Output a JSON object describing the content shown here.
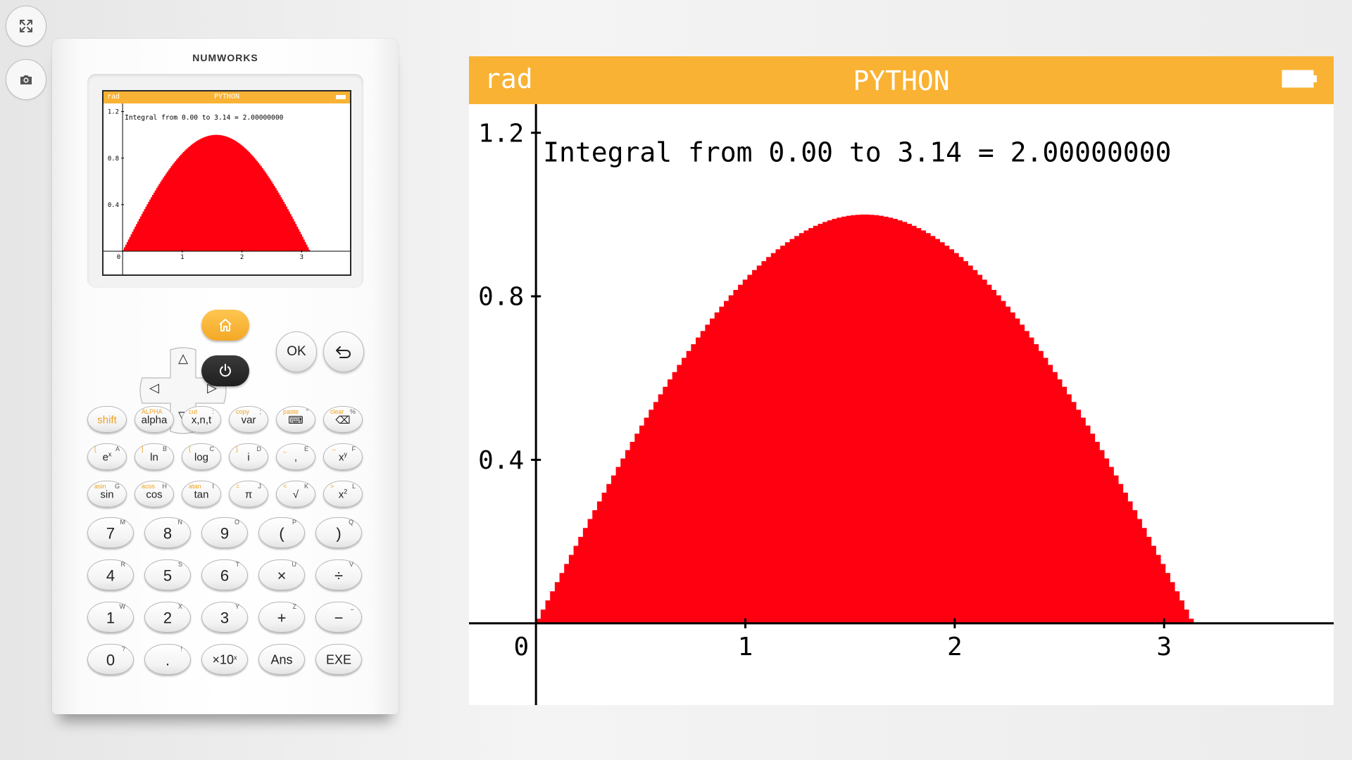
{
  "toolbar": {
    "fullscreen_icon": "fullscreen-icon",
    "screenshot_icon": "camera-icon"
  },
  "calculator": {
    "brand": "NUMWORKS",
    "nav": {
      "up": "△",
      "down": "▽",
      "left": "◁",
      "right": "▷",
      "home_icon": "home-icon",
      "power_icon": "power-icon",
      "ok": "OK",
      "back_icon": "back-arrow-icon"
    },
    "colors": {
      "accent": "#f9b233",
      "plot": "#ff0010",
      "power": "#2b2b2b"
    },
    "func_rows": [
      [
        {
          "main": "shift",
          "yellow": "",
          "alt": ""
        },
        {
          "main": "alpha",
          "yellow": "ALPHA",
          "alt": ""
        },
        {
          "main": "x,n,t",
          "yellow": "cut",
          "alt": ":"
        },
        {
          "main": "var",
          "yellow": "copy",
          "alt": ";"
        },
        {
          "main": "⌨",
          "yellow": "paste",
          "alt": "\""
        },
        {
          "main": "⌫",
          "yellow": "clear",
          "alt": "%"
        }
      ],
      [
        {
          "main": "e",
          "sup": "x",
          "yellow": "[",
          "alt": "A"
        },
        {
          "main": "ln",
          "yellow": "]",
          "alt": "B"
        },
        {
          "main": "log",
          "yellow": "{",
          "alt": "C"
        },
        {
          "main": "i",
          "yellow": "}",
          "alt": "D"
        },
        {
          "main": ",",
          "yellow": "_",
          "alt": "E"
        },
        {
          "main": "x",
          "sup": "y",
          "yellow": "→",
          "alt": "F"
        }
      ],
      [
        {
          "main": "sin",
          "yellow": "asin",
          "alt": "G"
        },
        {
          "main": "cos",
          "yellow": "acos",
          "alt": "H"
        },
        {
          "main": "tan",
          "yellow": "atan",
          "alt": "I"
        },
        {
          "main": "π",
          "yellow": "=",
          "alt": "J"
        },
        {
          "main": "√",
          "yellow": "<",
          "alt": "K"
        },
        {
          "main": "x",
          "sup": "2",
          "yellow": ">",
          "alt": "L"
        }
      ]
    ],
    "num_rows": [
      [
        {
          "main": "7",
          "alt": "M"
        },
        {
          "main": "8",
          "alt": "N"
        },
        {
          "main": "9",
          "alt": "O"
        },
        {
          "main": "(",
          "alt": "P"
        },
        {
          "main": ")",
          "alt": "Q"
        }
      ],
      [
        {
          "main": "4",
          "alt": "R"
        },
        {
          "main": "5",
          "alt": "S"
        },
        {
          "main": "6",
          "alt": "T"
        },
        {
          "main": "×",
          "alt": "U"
        },
        {
          "main": "÷",
          "alt": "V"
        }
      ],
      [
        {
          "main": "1",
          "alt": "W"
        },
        {
          "main": "2",
          "alt": "X"
        },
        {
          "main": "3",
          "alt": "Y"
        },
        {
          "main": "+",
          "alt": "Z"
        },
        {
          "main": "−",
          "alt": "⎵"
        }
      ],
      [
        {
          "main": "0",
          "alt": "?"
        },
        {
          "main": ".",
          "alt": "!"
        },
        {
          "main": "×10",
          "sup": "x",
          "alt": ""
        },
        {
          "main": "Ans",
          "alt": ""
        },
        {
          "main": "EXE",
          "alt": ""
        }
      ]
    ]
  },
  "screen": {
    "angle_mode": "rad",
    "app": "PYTHON",
    "battery_icon": "battery-icon",
    "annotation": "Integral from 0.00 to 3.14 = 2.00000000"
  },
  "chart_data": {
    "type": "area",
    "function": "sin(x)",
    "x_range": [
      0,
      3.1416
    ],
    "samples": 140,
    "xlim": [
      -0.32,
      3.81
    ],
    "ylim": [
      -0.2,
      1.27
    ],
    "x_ticks": [
      0,
      1,
      2,
      3
    ],
    "x_tick_labels": [
      "0",
      "1",
      "2",
      "3"
    ],
    "y_ticks": [
      0.4,
      0.8,
      1.2
    ],
    "y_tick_labels": [
      "0.4",
      "0.8",
      "1.2"
    ],
    "fill_color": "#ff0010",
    "grid": false,
    "annotation": "Integral from 0.00 to 3.14 = 2.00000000"
  }
}
